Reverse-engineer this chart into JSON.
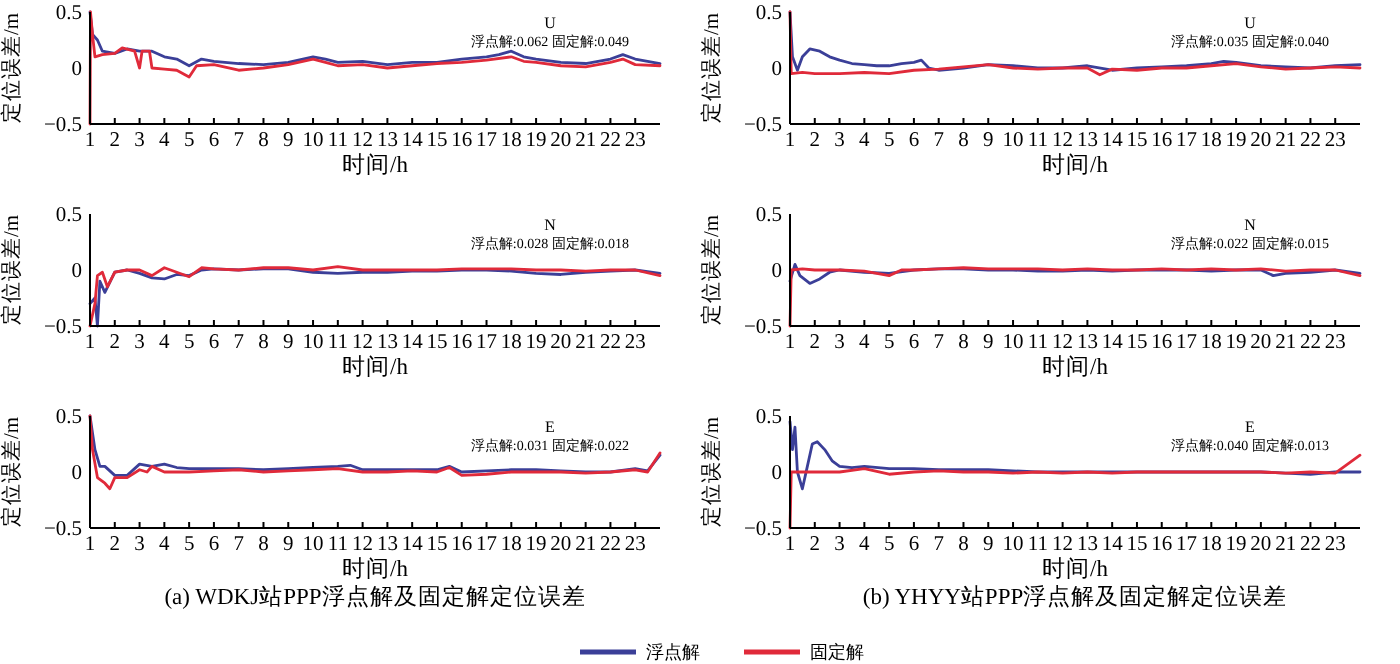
{
  "chart_data": [
    {
      "type": "line",
      "xlabel": "时间/h",
      "ylabel": "定位误差/m",
      "annotations": [
        "U",
        "浮点解:0.062 固定解:0.049"
      ],
      "xlim": [
        1,
        24
      ],
      "xticks": [
        1,
        2,
        3,
        4,
        5,
        6,
        7,
        8,
        9,
        10,
        11,
        12,
        13,
        14,
        15,
        16,
        17,
        18,
        19,
        20,
        21,
        22,
        23
      ],
      "ylim": [
        -0.5,
        0.5
      ],
      "yticks": [
        -0.5,
        0,
        0.5
      ],
      "grid": false,
      "line_style": "solid",
      "series": [
        {
          "color": "#3b3f98",
          "x": [
            1,
            1.1,
            1.3,
            1.5,
            2,
            2.5,
            3,
            3.5,
            4,
            4.5,
            5,
            5.5,
            6,
            7,
            8,
            9,
            10,
            10.5,
            11,
            12,
            13,
            14,
            15,
            16,
            17,
            17.5,
            18,
            18.5,
            19,
            20,
            21,
            22,
            22.5,
            23,
            23.5,
            24
          ],
          "values": [
            0.5,
            0.3,
            0.25,
            0.15,
            0.13,
            0.17,
            0.15,
            0.15,
            0.1,
            0.08,
            0.02,
            0.08,
            0.06,
            0.04,
            0.03,
            0.05,
            0.1,
            0.08,
            0.05,
            0.06,
            0.03,
            0.05,
            0.05,
            0.08,
            0.1,
            0.12,
            0.15,
            0.1,
            0.08,
            0.05,
            0.04,
            0.08,
            0.12,
            0.08,
            0.06,
            0.04
          ]
        },
        {
          "color": "#e02a3a",
          "x": [
            1,
            1.02,
            1.1,
            1.2,
            1.5,
            2,
            2.3,
            2.8,
            3,
            3.1,
            3.4,
            3.5,
            4,
            4.5,
            5,
            5.3,
            6,
            7,
            8,
            9,
            10,
            10.5,
            11,
            12,
            13,
            14,
            15,
            16,
            17,
            18,
            18.5,
            19,
            20,
            21,
            22,
            22.5,
            23,
            24
          ],
          "values": [
            -0.5,
            0.5,
            0.3,
            0.1,
            0.12,
            0.13,
            0.18,
            0.15,
            0,
            0.15,
            0.15,
            0,
            -0.01,
            -0.02,
            -0.08,
            0.02,
            0.03,
            -0.02,
            0,
            0.03,
            0.08,
            0.05,
            0.02,
            0.03,
            0,
            0.02,
            0.04,
            0.05,
            0.07,
            0.1,
            0.06,
            0.05,
            0.02,
            0.01,
            0.05,
            0.08,
            0.03,
            0.02
          ]
        }
      ]
    },
    {
      "type": "line",
      "xlabel": "时间/h",
      "ylabel": "定位误差/m",
      "annotations": [
        "U",
        "浮点解:0.035 固定解:0.040"
      ],
      "xlim": [
        1,
        24
      ],
      "xticks": [
        1,
        2,
        3,
        4,
        5,
        6,
        7,
        8,
        9,
        10,
        11,
        12,
        13,
        14,
        15,
        16,
        17,
        18,
        19,
        20,
        21,
        22,
        23
      ],
      "ylim": [
        -0.5,
        0.5
      ],
      "yticks": [
        -0.5,
        0,
        0.5
      ],
      "grid": false,
      "line_style": "solid",
      "series": [
        {
          "color": "#3b3f98",
          "x": [
            1,
            1.1,
            1.3,
            1.5,
            1.8,
            2.2,
            2.6,
            3,
            3.5,
            4,
            4.5,
            5,
            5.5,
            6,
            6.3,
            6.6,
            7,
            8,
            9,
            10,
            11,
            12,
            13,
            14,
            15,
            16,
            17,
            18,
            18.5,
            19,
            20,
            21,
            22,
            23,
            24
          ],
          "values": [
            0.5,
            0.1,
            -0.02,
            0.1,
            0.17,
            0.15,
            0.1,
            0.07,
            0.04,
            0.03,
            0.02,
            0.02,
            0.04,
            0.05,
            0.07,
            0,
            -0.02,
            0,
            0.03,
            0.02,
            0,
            0,
            0.02,
            -0.02,
            0,
            0.01,
            0.02,
            0.04,
            0.06,
            0.05,
            0.02,
            0.01,
            0,
            0.02,
            0.03
          ]
        },
        {
          "color": "#e02a3a",
          "x": [
            1,
            1.05,
            1.5,
            2,
            3,
            4,
            5,
            6,
            7,
            8,
            9,
            10,
            11,
            12,
            13,
            13.5,
            14,
            15,
            16,
            17,
            18,
            19,
            20,
            21,
            22,
            23,
            24
          ],
          "values": [
            0.5,
            -0.05,
            -0.04,
            -0.05,
            -0.05,
            -0.04,
            -0.05,
            -0.02,
            -0.01,
            0.01,
            0.03,
            0,
            -0.01,
            0,
            0,
            -0.06,
            -0.01,
            -0.02,
            0,
            0,
            0.02,
            0.04,
            0.01,
            -0.01,
            0,
            0.01,
            0
          ]
        }
      ]
    },
    {
      "type": "line",
      "xlabel": "时间/h",
      "ylabel": "定位误差/m",
      "annotations": [
        "N",
        "浮点解:0.028 固定解:0.018"
      ],
      "xlim": [
        1,
        24
      ],
      "xticks": [
        1,
        2,
        3,
        4,
        5,
        6,
        7,
        8,
        9,
        10,
        11,
        12,
        13,
        14,
        15,
        16,
        17,
        18,
        19,
        20,
        21,
        22,
        23
      ],
      "ylim": [
        -0.5,
        0.5
      ],
      "yticks": [
        -0.5,
        0,
        0.5
      ],
      "grid": false,
      "line_style": "solid",
      "series": [
        {
          "color": "#3b3f98",
          "x": [
            1,
            1.2,
            1.3,
            1.4,
            1.6,
            2,
            2.5,
            3,
            3.5,
            4,
            4.5,
            5,
            5.5,
            6,
            7,
            8,
            9,
            10,
            11,
            12,
            13,
            14,
            15,
            16,
            17,
            18,
            19,
            20,
            21,
            22,
            23,
            24
          ],
          "values": [
            -0.3,
            -0.25,
            -0.5,
            -0.1,
            -0.2,
            -0.02,
            0,
            -0.03,
            -0.07,
            -0.08,
            -0.04,
            -0.05,
            0,
            0.01,
            0,
            0.01,
            0.01,
            -0.02,
            -0.03,
            -0.02,
            -0.02,
            -0.01,
            -0.01,
            0,
            0,
            -0.01,
            -0.03,
            -0.04,
            -0.02,
            -0.01,
            0,
            -0.03
          ]
        },
        {
          "color": "#e02a3a",
          "x": [
            1,
            1.2,
            1.3,
            1.5,
            1.7,
            2,
            2.5,
            3,
            3.5,
            4,
            4.5,
            5,
            5.5,
            6,
            7,
            8,
            9,
            10,
            11,
            12,
            13,
            14,
            15,
            16,
            17,
            18,
            19,
            20,
            21,
            22,
            23,
            24
          ],
          "values": [
            -0.5,
            -0.3,
            -0.05,
            -0.02,
            -0.15,
            -0.02,
            0,
            0,
            -0.05,
            0.02,
            -0.02,
            -0.06,
            0.02,
            0.01,
            0,
            0.02,
            0.02,
            0,
            0.03,
            0,
            0,
            0,
            0,
            0.01,
            0.01,
            0.01,
            0,
            0,
            -0.01,
            0,
            0,
            -0.05
          ]
        }
      ]
    },
    {
      "type": "line",
      "xlabel": "时间/h",
      "ylabel": "定位误差/m",
      "annotations": [
        "N",
        "浮点解:0.022 固定解:0.015"
      ],
      "xlim": [
        1,
        24
      ],
      "xticks": [
        1,
        2,
        3,
        4,
        5,
        6,
        7,
        8,
        9,
        10,
        11,
        12,
        13,
        14,
        15,
        16,
        17,
        18,
        19,
        20,
        21,
        22,
        23
      ],
      "ylim": [
        -0.5,
        0.5
      ],
      "yticks": [
        -0.5,
        0,
        0.5
      ],
      "grid": false,
      "line_style": "solid",
      "series": [
        {
          "color": "#3b3f98",
          "x": [
            1,
            1.2,
            1.4,
            1.8,
            2.2,
            2.6,
            3,
            4,
            5,
            6,
            7,
            8,
            9,
            10,
            11,
            12,
            13,
            14,
            15,
            16,
            17,
            18,
            19,
            20,
            20.5,
            21,
            22,
            23,
            24
          ],
          "values": [
            -0.1,
            0.05,
            -0.05,
            -0.12,
            -0.08,
            -0.02,
            0,
            -0.02,
            -0.03,
            0,
            0.01,
            0.01,
            0,
            0,
            -0.01,
            -0.01,
            0,
            -0.01,
            0,
            0,
            0,
            -0.01,
            0,
            0,
            -0.05,
            -0.03,
            -0.02,
            0,
            -0.03
          ]
        },
        {
          "color": "#e02a3a",
          "x": [
            1,
            1.05,
            1.5,
            2,
            3,
            4,
            5,
            5.5,
            6,
            7,
            8,
            9,
            10,
            11,
            12,
            13,
            14,
            15,
            16,
            17,
            18,
            19,
            20,
            21,
            22,
            23,
            24
          ],
          "values": [
            -0.5,
            0,
            0.01,
            0,
            0,
            -0.01,
            -0.05,
            0,
            0,
            0.01,
            0.02,
            0.01,
            0.01,
            0.01,
            0,
            0.01,
            0,
            0,
            0.01,
            0,
            0.01,
            0,
            0.01,
            -0.01,
            0,
            0,
            -0.05
          ]
        }
      ]
    },
    {
      "type": "line",
      "xlabel": "时间/h",
      "ylabel": "定位误差/m",
      "annotations": [
        "E",
        "浮点解:0.031 固定解:0.022",
        "(a) WDKJ站PPP浮点解及固定解定位误差"
      ],
      "xlim": [
        1,
        24
      ],
      "xticks": [
        1,
        2,
        3,
        4,
        5,
        6,
        7,
        8,
        9,
        10,
        11,
        12,
        13,
        14,
        15,
        16,
        17,
        18,
        19,
        20,
        21,
        22,
        23
      ],
      "ylim": [
        -0.5,
        0.5
      ],
      "yticks": [
        -0.5,
        0,
        0.5
      ],
      "grid": false,
      "line_style": "solid",
      "series": [
        {
          "color": "#3b3f98",
          "x": [
            1,
            1.2,
            1.4,
            1.6,
            2,
            2.5,
            3,
            3.5,
            4,
            4.5,
            5,
            6,
            7,
            8,
            9,
            10,
            11,
            11.5,
            12,
            13,
            14,
            15,
            15.5,
            16,
            17,
            18,
            19,
            20,
            21,
            22,
            23,
            23.5,
            24
          ],
          "values": [
            0.5,
            0.2,
            0.05,
            0.05,
            -0.03,
            -0.03,
            0.07,
            0.05,
            0.07,
            0.04,
            0.03,
            0.03,
            0.03,
            0.02,
            0.03,
            0.04,
            0.05,
            0.06,
            0.02,
            0.02,
            0.02,
            0.02,
            0.05,
            0,
            0.01,
            0.02,
            0.02,
            0.01,
            0,
            0,
            0.03,
            0.01,
            0.15
          ]
        },
        {
          "color": "#e02a3a",
          "x": [
            1,
            1.1,
            1.3,
            1.6,
            1.8,
            2,
            2.5,
            3,
            3.3,
            3.5,
            4,
            5,
            6,
            7,
            8,
            9,
            10,
            11,
            12,
            13,
            14,
            15,
            15.5,
            16,
            17,
            18,
            19,
            20,
            21,
            22,
            23,
            23.5,
            24
          ],
          "values": [
            0.5,
            0.2,
            -0.05,
            -0.1,
            -0.15,
            -0.05,
            -0.05,
            0.02,
            0,
            0.05,
            0,
            0,
            0.01,
            0.02,
            0,
            0.01,
            0.02,
            0.03,
            0,
            0,
            0.01,
            0,
            0.04,
            -0.03,
            -0.02,
            0,
            0,
            0,
            -0.01,
            0,
            0.02,
            0,
            0.17
          ]
        }
      ]
    },
    {
      "type": "line",
      "xlabel": "时间/h",
      "ylabel": "定位误差/m",
      "annotations": [
        "E",
        "浮点解:0.040 固定解:0.013",
        "(b) YHYY站PPP浮点解及固定解定位误差"
      ],
      "xlim": [
        1,
        24
      ],
      "xticks": [
        1,
        2,
        3,
        4,
        5,
        6,
        7,
        8,
        9,
        10,
        11,
        12,
        13,
        14,
        15,
        16,
        17,
        18,
        19,
        20,
        21,
        22,
        23
      ],
      "ylim": [
        -0.5,
        0.5
      ],
      "yticks": [
        -0.5,
        0,
        0.5
      ],
      "grid": false,
      "line_style": "solid",
      "legend": "bottom",
      "series": [
        {
          "name": "浮点解",
          "color": "#3b3f98",
          "x": [
            1,
            1.1,
            1.2,
            1.3,
            1.5,
            1.7,
            1.9,
            2.1,
            2.4,
            2.7,
            3,
            3.5,
            4,
            5,
            6,
            7,
            8,
            9,
            10,
            11,
            12,
            13,
            14,
            15,
            16,
            17,
            18,
            19,
            20,
            21,
            22,
            23,
            24
          ],
          "values": [
            0.45,
            0.2,
            0.4,
            0,
            -0.15,
            0.05,
            0.25,
            0.27,
            0.2,
            0.1,
            0.05,
            0.04,
            0.05,
            0.03,
            0.03,
            0.02,
            0.02,
            0.02,
            0.01,
            0,
            0,
            0,
            0,
            0,
            0,
            0,
            0,
            0,
            0,
            -0.01,
            -0.02,
            0,
            0
          ]
        },
        {
          "name": "固定解",
          "color": "#e02a3a",
          "x": [
            1,
            1.05,
            1.5,
            2,
            3,
            4,
            5,
            6,
            7,
            8,
            9,
            10,
            11,
            12,
            13,
            14,
            15,
            16,
            17,
            18,
            19,
            20,
            21,
            22,
            23,
            24
          ],
          "values": [
            -0.5,
            0,
            0,
            0,
            0,
            0.03,
            -0.02,
            0,
            0.01,
            0,
            0,
            -0.01,
            0,
            -0.01,
            0,
            -0.01,
            0,
            0,
            0,
            0,
            0,
            0,
            -0.01,
            0,
            -0.01,
            0.15
          ]
        }
      ]
    }
  ]
}
